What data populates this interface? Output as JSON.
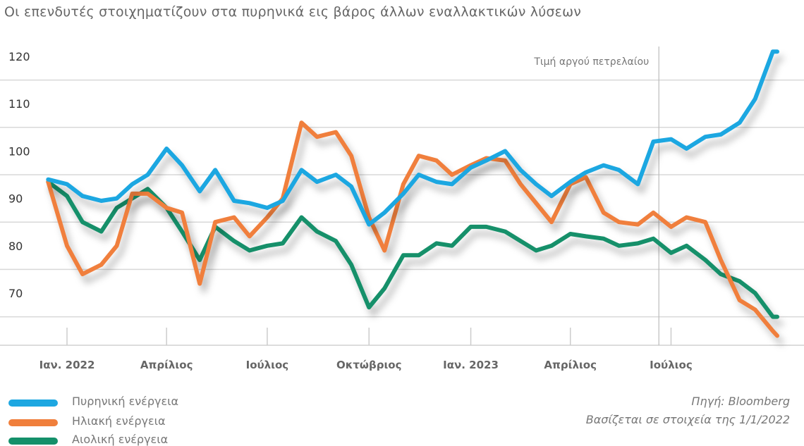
{
  "title": "Οι επενδυτές στοιχηματίζουν στα πυρηνικά εις βάρος άλλων εναλλακτικών λύσεων",
  "source": [
    "Πηγή: Bloomberg",
    "Βασίζεται σε στοιχεία της 1/1/2022"
  ],
  "chart_data": {
    "type": "line",
    "title": "",
    "xlabel": "",
    "ylabel": "",
    "ylim": [
      60,
      125
    ],
    "yticks": [
      120,
      110,
      100,
      90,
      80,
      70
    ],
    "xticks": [
      {
        "date": "2022-01-01",
        "label": "Ιαν. 2022"
      },
      {
        "date": "2022-04-01",
        "label": "Απρίλιος"
      },
      {
        "date": "2022-07-01",
        "label": "Ιούλιος"
      },
      {
        "date": "2022-10-01",
        "label": "Οκτώβριος"
      },
      {
        "date": "2023-01-01",
        "label": "Ιαν. 2023"
      },
      {
        "date": "2023-04-01",
        "label": "Απρίλιος"
      },
      {
        "date": "2023-07-01",
        "label": "Ιούλιος"
      }
    ],
    "grid": "horizontal",
    "legend_position": "bottom-left",
    "annotation": {
      "date": "2023-06-20",
      "label": "Τιμή αργού πετρελαίου"
    },
    "x": [
      "2021-12-15",
      "2022-01-01",
      "2022-01-15",
      "2022-02-01",
      "2022-02-15",
      "2022-03-01",
      "2022-03-15",
      "2022-04-01",
      "2022-04-15",
      "2022-05-01",
      "2022-05-15",
      "2022-06-01",
      "2022-06-15",
      "2022-07-01",
      "2022-07-15",
      "2022-08-01",
      "2022-08-15",
      "2022-09-01",
      "2022-09-15",
      "2022-10-01",
      "2022-10-15",
      "2022-11-01",
      "2022-11-15",
      "2022-12-01",
      "2022-12-15",
      "2023-01-01",
      "2023-01-15",
      "2023-02-01",
      "2023-02-15",
      "2023-03-01",
      "2023-03-15",
      "2023-04-01",
      "2023-04-15",
      "2023-05-01",
      "2023-05-15",
      "2023-06-01",
      "2023-06-15",
      "2023-07-01",
      "2023-07-15",
      "2023-08-01",
      "2023-08-15",
      "2023-09-01",
      "2023-09-15",
      "2023-10-01",
      "2023-10-05"
    ],
    "series": [
      {
        "name": "Πυρηνική ενέργεια",
        "color": "#1ea7e1",
        "values": [
          94,
          93,
          90.5,
          89.5,
          90,
          93,
          95,
          100.5,
          97,
          91.5,
          96,
          89.5,
          89,
          88,
          89.5,
          96,
          93.5,
          95,
          92.5,
          84.5,
          87,
          91,
          95,
          93.5,
          93,
          96.5,
          98,
          100,
          96,
          93,
          90.5,
          93.5,
          95.5,
          97,
          96,
          93,
          102,
          102.5,
          100.5,
          103,
          103.5,
          106,
          111,
          121,
          121
        ]
      },
      {
        "name": "Ηλιακή ενέργεια",
        "color": "#f07f3c",
        "values": [
          93.5,
          80,
          74,
          76,
          80,
          91,
          91,
          88,
          87,
          72,
          85,
          86,
          82,
          86,
          90,
          106,
          103,
          104,
          99,
          86,
          79,
          93,
          99,
          98,
          95,
          97,
          98.5,
          98,
          93,
          89,
          85,
          93,
          94.5,
          87,
          85,
          84.5,
          87,
          84,
          86,
          85,
          77,
          68.5,
          66.5,
          62,
          61
        ]
      },
      {
        "name": "Αιολική ενέργεια",
        "color": "#14906a",
        "values": [
          93.5,
          90.5,
          85,
          83,
          88,
          90,
          92,
          88,
          83,
          77,
          84,
          81,
          79,
          80,
          80.5,
          86,
          83,
          81,
          76,
          67,
          71,
          78,
          78,
          80.5,
          80,
          84,
          84,
          83,
          81,
          79,
          80,
          82.5,
          82,
          81.5,
          80,
          80.5,
          81.5,
          78.5,
          80,
          77,
          74,
          72.5,
          70,
          65,
          65
        ]
      }
    ]
  }
}
